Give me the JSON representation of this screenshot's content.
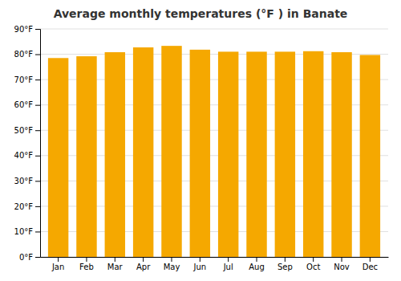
{
  "chart_data": {
    "type": "bar",
    "title": "Average monthly temperatures (°F ) in Banate",
    "categories": [
      "Jan",
      "Feb",
      "Mar",
      "Apr",
      "May",
      "Jun",
      "Jul",
      "Aug",
      "Sep",
      "Oct",
      "Nov",
      "Dec"
    ],
    "values": [
      78.5,
      79.2,
      80.8,
      82.7,
      83.3,
      81.8,
      81.0,
      81.0,
      81.0,
      81.2,
      80.8,
      79.7
    ],
    "color": "#F5A800",
    "ylim": [
      0,
      90
    ],
    "yticks": [
      {
        "value": 0,
        "label": "0°F"
      },
      {
        "value": 10,
        "label": "10°F"
      },
      {
        "value": 20,
        "label": "20°F"
      },
      {
        "value": 30,
        "label": "30°F"
      },
      {
        "value": 40,
        "label": "40°F"
      },
      {
        "value": 50,
        "label": "50°F"
      },
      {
        "value": 60,
        "label": "60°F"
      },
      {
        "value": 70,
        "label": "70°F"
      },
      {
        "value": 80,
        "label": "80°F"
      },
      {
        "value": 90,
        "label": "90°F"
      }
    ],
    "grid": true
  }
}
